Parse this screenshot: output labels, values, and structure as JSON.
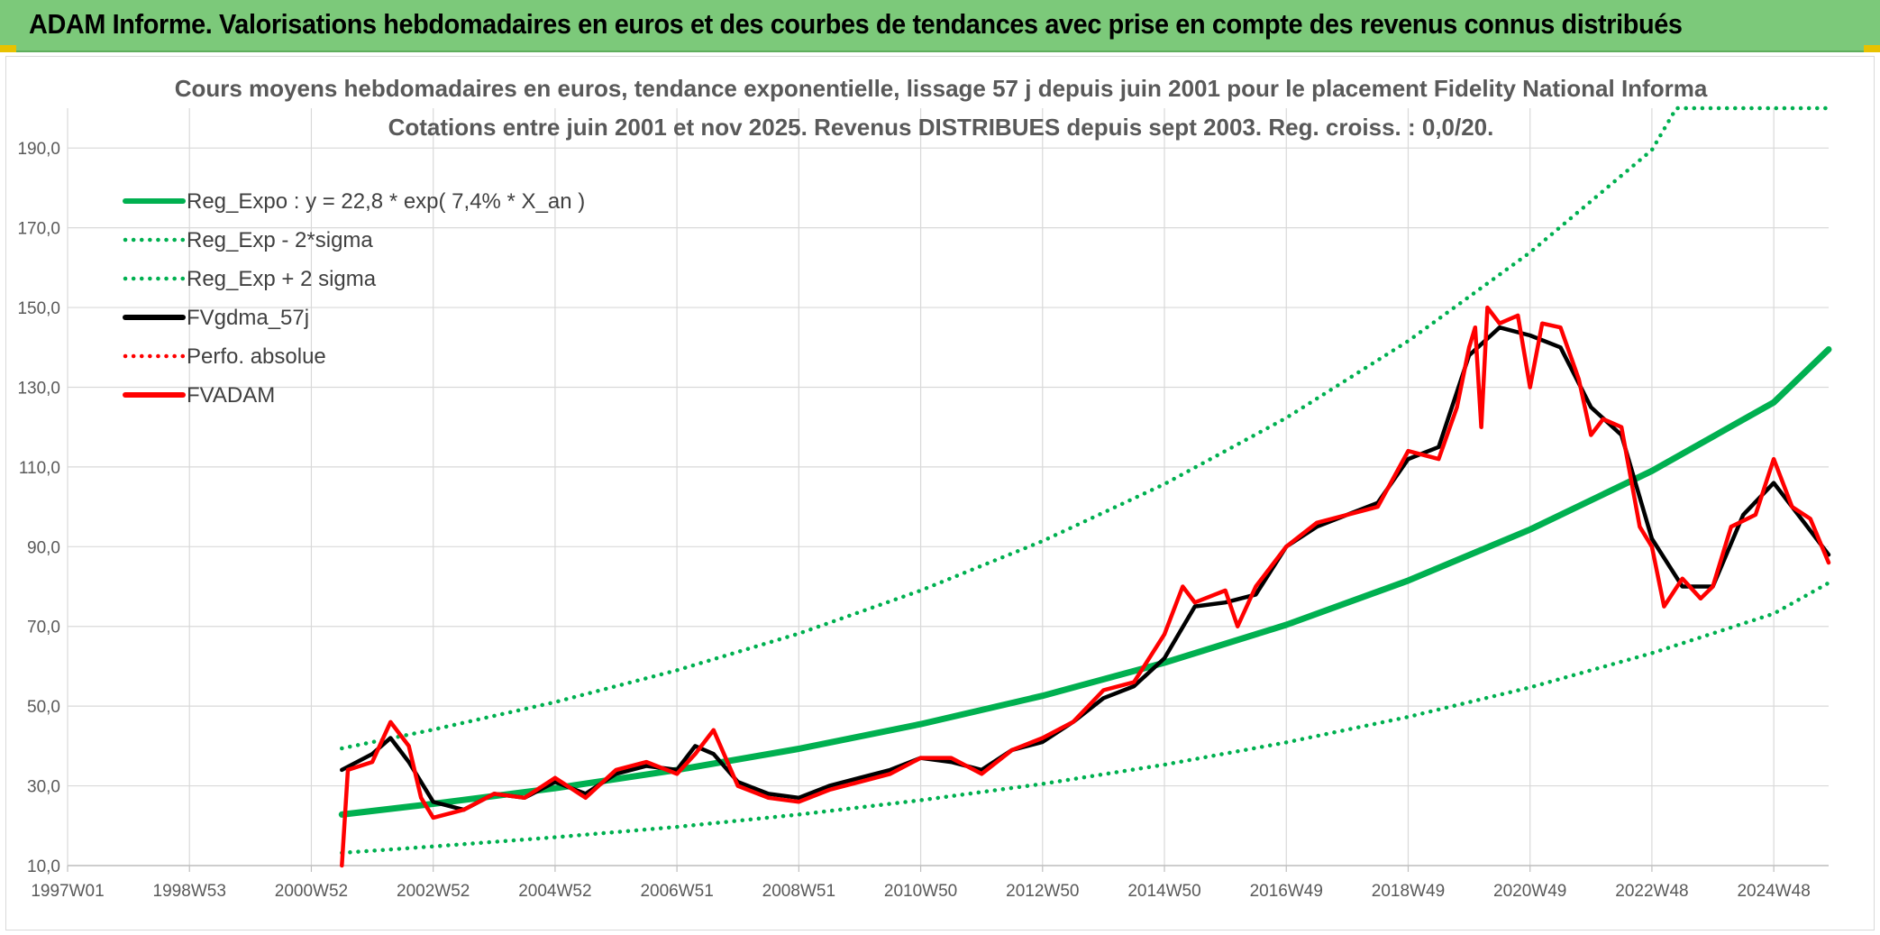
{
  "banner": {
    "title": "ADAM Informe. Valorisations hebdomadaires en euros et des courbes de tendances avec prise en compte des revenus connus distribués"
  },
  "colors": {
    "banner": "#7cc97a",
    "reg": "#00b050",
    "gdma": "#000000",
    "price": "#ff0000",
    "grid": "#d9d9d9",
    "text": "#595959"
  },
  "chart_data": {
    "type": "line",
    "title": "Cours moyens hebdomadaires en euros, tendance exponentielle, lissage 57 j depuis juin 2001 pour le placement Fidelity National Informa",
    "subtitle": "Cotations entre juin 2001 et nov 2025. Revenus DISTRIBUES depuis sept 2003. Reg. croiss. : 0,0/20.",
    "xlabel": "",
    "ylabel": "",
    "xlim": [
      1997.0,
      2025.9
    ],
    "ylim": [
      10,
      200
    ],
    "yticks": [
      "10,0",
      "30,0",
      "50,0",
      "70,0",
      "90,0",
      "110,0",
      "130,0",
      "150,0",
      "170,0",
      "190,0"
    ],
    "ytick_values": [
      10,
      30,
      50,
      70,
      90,
      110,
      130,
      150,
      170,
      190
    ],
    "xticks": [
      "1997W01",
      "1998W53",
      "2000W52",
      "2002W52",
      "2004W52",
      "2006W51",
      "2008W51",
      "2010W50",
      "2012W50",
      "2014W50",
      "2016W49",
      "2018W49",
      "2020W49",
      "2022W48",
      "2024W48"
    ],
    "xtick_values": [
      1997.0,
      1999.0,
      2001.0,
      2003.0,
      2005.0,
      2007.0,
      2009.0,
      2011.0,
      2013.0,
      2015.0,
      2017.0,
      2019.0,
      2021.0,
      2023.0,
      2025.0
    ],
    "grid": true,
    "legend_position": "top-left",
    "series": [
      {
        "name": "Reg_Expo : y = 22,8 * exp( 7,4% *  X_an )",
        "style": "solid-thick",
        "color": "#00b050",
        "x": [
          2001.5,
          2003,
          2005,
          2007,
          2009,
          2011,
          2013,
          2015,
          2017,
          2019,
          2021,
          2023,
          2025,
          2025.9
        ],
        "values": [
          22.8,
          25.5,
          29.4,
          34.0,
          39.3,
          45.5,
          52.6,
          60.9,
          70.4,
          81.5,
          94.3,
          109.0,
          126.2,
          139.5
        ]
      },
      {
        "name": "Reg_Exp - 2*sigma",
        "style": "dotted",
        "color": "#00b050",
        "x": [
          2001.5,
          2003,
          2005,
          2007,
          2009,
          2011,
          2013,
          2015,
          2017,
          2019,
          2021,
          2023,
          2025,
          2025.9
        ],
        "values": [
          13.2,
          14.8,
          17.1,
          19.7,
          22.8,
          26.4,
          30.5,
          35.3,
          40.9,
          47.3,
          54.7,
          63.3,
          73.2,
          80.9
        ]
      },
      {
        "name": "Reg_Exp + 2 sigma",
        "style": "dotted",
        "color": "#00b050",
        "x": [
          2001.5,
          2003,
          2005,
          2007,
          2009,
          2011,
          2013,
          2015,
          2017,
          2019,
          2021,
          2023,
          2023.4,
          2025.9
        ],
        "values": [
          39.4,
          44.1,
          51.0,
          59.0,
          68.2,
          79.0,
          91.4,
          105.7,
          122.3,
          141.6,
          163.8,
          189.5,
          200.0,
          200.0
        ]
      },
      {
        "name": "FVgdma_57j",
        "style": "solid",
        "color": "#000000",
        "x": [
          2001.5,
          2002.0,
          2002.3,
          2002.6,
          2003.0,
          2003.5,
          2004.0,
          2004.5,
          2005.0,
          2005.5,
          2006.0,
          2006.5,
          2007.0,
          2007.3,
          2007.6,
          2008.0,
          2008.5,
          2009.0,
          2009.5,
          2010.0,
          2010.5,
          2011.0,
          2011.5,
          2012.0,
          2012.5,
          2013.0,
          2013.5,
          2014.0,
          2014.5,
          2015.0,
          2015.5,
          2016.0,
          2016.5,
          2017.0,
          2017.5,
          2018.0,
          2018.5,
          2019.0,
          2019.5,
          2020.0,
          2020.5,
          2021.0,
          2021.5,
          2022.0,
          2022.5,
          2023.0,
          2023.5,
          2024.0,
          2024.5,
          2025.0,
          2025.5,
          2025.9
        ],
        "values": [
          34,
          38,
          42,
          36,
          26,
          24,
          28,
          27,
          31,
          28,
          33,
          35,
          34,
          40,
          38,
          31,
          28,
          27,
          30,
          32,
          34,
          37,
          36,
          34,
          39,
          41,
          46,
          52,
          55,
          62,
          75,
          76,
          78,
          90,
          95,
          98,
          101,
          112,
          115,
          138,
          145,
          143,
          140,
          125,
          118,
          92,
          80,
          80,
          98,
          106,
          96,
          88
        ]
      },
      {
        "name": "Perfo. absolue",
        "style": "dotted",
        "color": "#ff0000",
        "x": [],
        "values": []
      },
      {
        "name": "FVADAM",
        "style": "solid-thick",
        "color": "#ff0000",
        "x": [
          2001.5,
          2001.6,
          2002.0,
          2002.3,
          2002.6,
          2002.8,
          2003.0,
          2003.5,
          2004.0,
          2004.5,
          2005.0,
          2005.5,
          2006.0,
          2006.5,
          2007.0,
          2007.3,
          2007.6,
          2008.0,
          2008.5,
          2009.0,
          2009.5,
          2010.0,
          2010.5,
          2011.0,
          2011.5,
          2012.0,
          2012.5,
          2013.0,
          2013.5,
          2014.0,
          2014.5,
          2015.0,
          2015.3,
          2015.5,
          2016.0,
          2016.2,
          2016.5,
          2017.0,
          2017.5,
          2018.0,
          2018.5,
          2019.0,
          2019.5,
          2019.8,
          2020.0,
          2020.1,
          2020.2,
          2020.3,
          2020.5,
          2020.8,
          2021.0,
          2021.2,
          2021.5,
          2021.8,
          2022.0,
          2022.2,
          2022.5,
          2022.8,
          2023.0,
          2023.2,
          2023.5,
          2023.8,
          2024.0,
          2024.3,
          2024.7,
          2025.0,
          2025.3,
          2025.6,
          2025.9
        ],
        "values": [
          10,
          34,
          36,
          46,
          40,
          27,
          22,
          24,
          28,
          27,
          32,
          27,
          34,
          36,
          33,
          38,
          44,
          30,
          27,
          26,
          29,
          31,
          33,
          37,
          37,
          33,
          39,
          42,
          46,
          54,
          56,
          68,
          80,
          76,
          79,
          70,
          80,
          90,
          96,
          98,
          100,
          114,
          112,
          125,
          140,
          145,
          120,
          150,
          146,
          148,
          130,
          146,
          145,
          132,
          118,
          122,
          120,
          95,
          90,
          75,
          82,
          77,
          80,
          95,
          98,
          112,
          100,
          97,
          86
        ]
      }
    ]
  }
}
